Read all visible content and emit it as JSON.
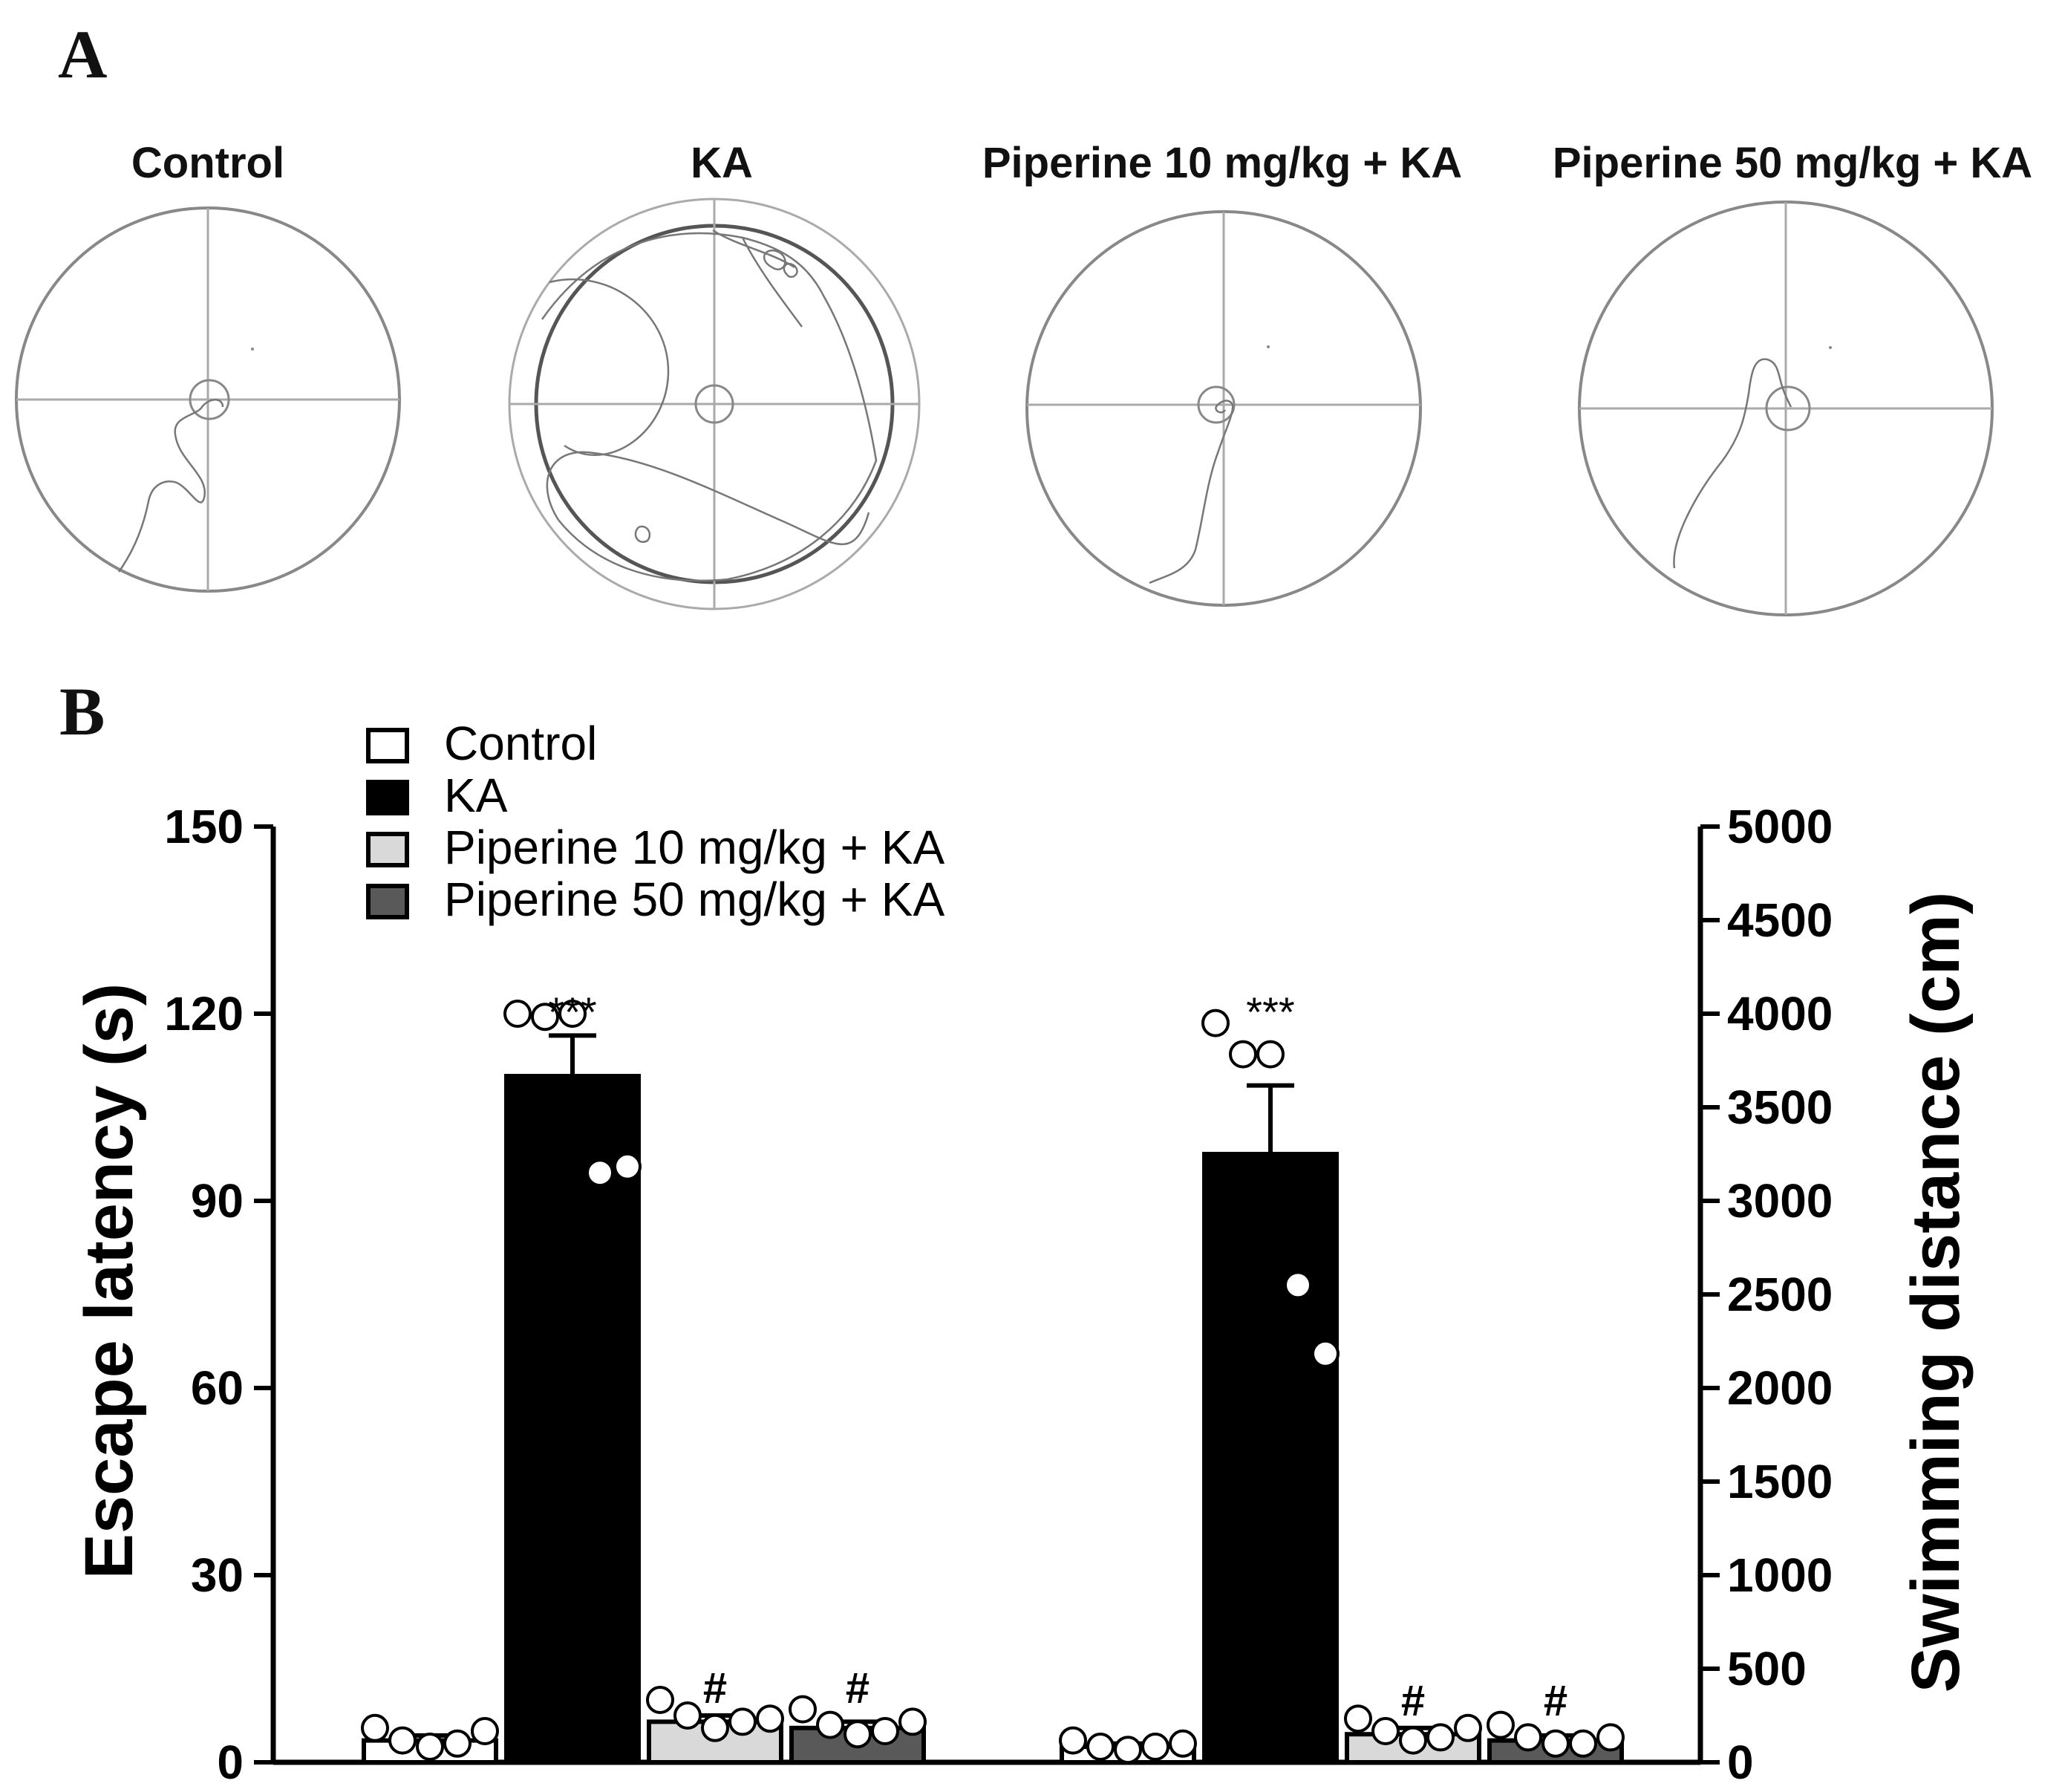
{
  "panels": {
    "a_label": "A",
    "b_label": "B"
  },
  "mazes": {
    "titles": [
      "Control",
      "KA",
      "Piperine 10 mg/kg + KA",
      "Piperine 50 mg/kg + KA"
    ],
    "trace_color": "#777777",
    "frame_color": "#888888"
  },
  "colors": {
    "control": "#ffffff",
    "ka": "#000000",
    "pip10": "#d9d9d9",
    "pip50": "#595959",
    "axis": "#000000"
  },
  "chart_data": {
    "type": "bar",
    "groups": [
      "Escape latency (s)",
      "Swimming distance (cm)"
    ],
    "series": [
      {
        "name": "Control",
        "values": [
          3.5,
          2.5
        ]
      },
      {
        "name": "KA",
        "values": [
          110,
          97.5
        ]
      },
      {
        "name": "Piperine 10 mg/kg + KA",
        "values": [
          6.5,
          4.5
        ]
      },
      {
        "name": "Piperine 50 mg/kg + KA",
        "values": [
          5.5,
          3.5
        ]
      }
    ],
    "errors": [
      [
        0.8,
        0.5
      ],
      [
        6.5,
        11
      ],
      [
        1.0,
        1.0
      ],
      [
        1.0,
        0.8
      ]
    ],
    "points": [
      [
        [
          5.5,
          3.5,
          2.5,
          3.0,
          5.0
        ],
        [
          3.5,
          2.5,
          2.0,
          2.5,
          3.0
        ]
      ],
      [
        [
          120,
          119.5,
          120,
          94.5,
          95.5
        ],
        [
          118.5,
          113.5,
          113.5,
          76.5,
          65.5
        ]
      ],
      [
        [
          10,
          7.5,
          5.5,
          6.5,
          7.0
        ],
        [
          7.0,
          5.0,
          3.5,
          4.0,
          5.5
        ]
      ],
      [
        [
          8.5,
          6.0,
          4.5,
          5.0,
          6.5
        ],
        [
          6.0,
          4.0,
          3.0,
          3.0,
          4.0
        ]
      ]
    ],
    "annotations": [
      {
        "text": "***",
        "series": 1,
        "group": 0,
        "y": 118
      },
      {
        "text": "***",
        "series": 1,
        "group": 1,
        "y": 118
      },
      {
        "text": "#",
        "series": 2,
        "group": 0,
        "y": 9.5
      },
      {
        "text": "#",
        "series": 3,
        "group": 0,
        "y": 9.5
      },
      {
        "text": "#",
        "series": 2,
        "group": 1,
        "y": 7.5
      },
      {
        "text": "#",
        "series": 3,
        "group": 1,
        "y": 7.5
      }
    ],
    "ylabel_left": "Escape latency (s)",
    "ylabel_right": "Swimming distance (cm)",
    "ylim_left": [
      0,
      150
    ],
    "yticks_left": [
      "0",
      "30",
      "60",
      "90",
      "120",
      "150"
    ],
    "ytick_values_left": [
      0,
      30,
      60,
      90,
      120,
      150
    ],
    "ylim_right": [
      0,
      5000
    ],
    "yticks_right": [
      "0",
      "500",
      "1000",
      "1500",
      "2000",
      "2500",
      "3000",
      "3500",
      "4000",
      "4500",
      "5000"
    ],
    "ytick_values_right": [
      0,
      500,
      1000,
      1500,
      2000,
      2500,
      3000,
      3500,
      4000,
      4500,
      5000
    ],
    "legend": [
      "Control",
      "KA",
      "Piperine 10 mg/kg + KA",
      "Piperine 50 mg/kg + KA"
    ],
    "legend_position": "top-left"
  }
}
